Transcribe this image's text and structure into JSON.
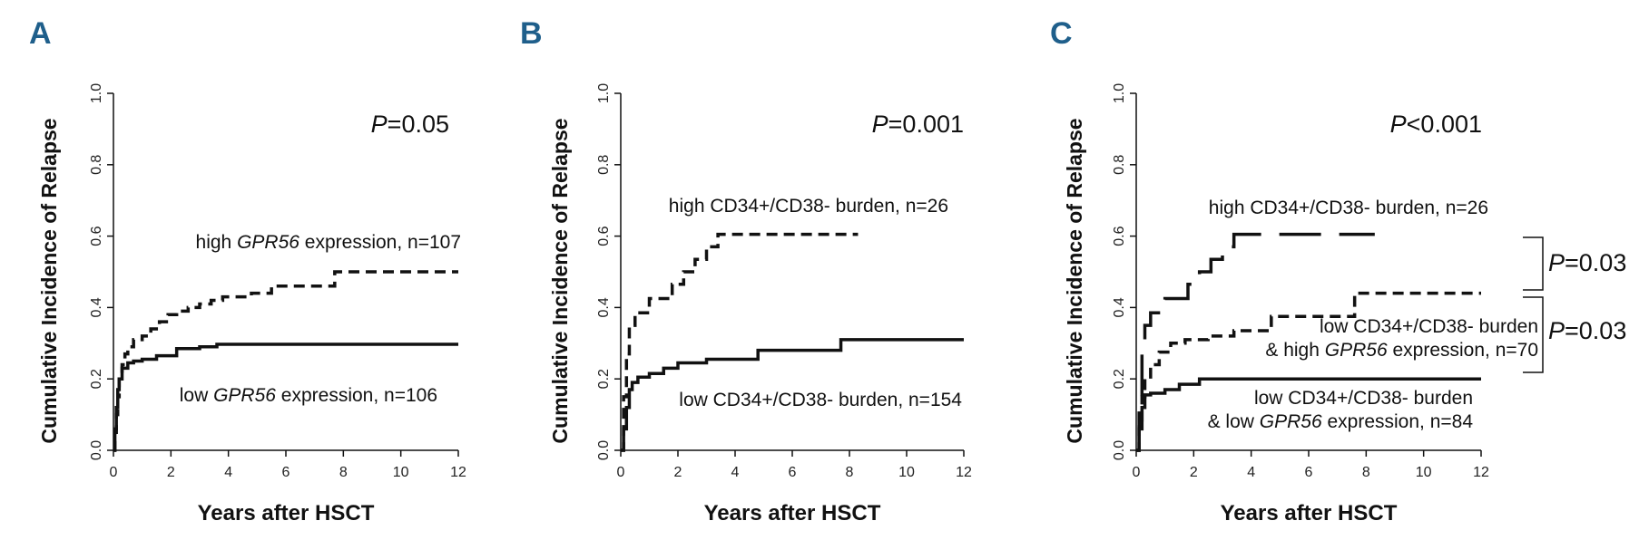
{
  "chart_data": [
    {
      "type": "line",
      "panel": "A",
      "xlabel": "Years after HSCT",
      "ylabel": "Cumulative Incidence of Relapse",
      "xlim": [
        0,
        12
      ],
      "ylim": [
        0,
        1
      ],
      "xticks": [
        "0",
        "2",
        "4",
        "6",
        "8",
        "10",
        "12"
      ],
      "yticks": [
        "0.0",
        "0.2",
        "0.4",
        "0.6",
        "0.8",
        "1.0"
      ],
      "p_value": {
        "prefix": "P",
        "text": "=0.05"
      },
      "series": [
        {
          "name": "high GPR56 expression",
          "label_parts": [
            "high ",
            "GPR56",
            " expression, n=107"
          ],
          "style": "dashed",
          "x": [
            0,
            0.05,
            0.1,
            0.15,
            0.2,
            0.3,
            0.4,
            0.5,
            0.7,
            1.0,
            1.3,
            1.6,
            1.9,
            2.2,
            2.6,
            3.0,
            3.4,
            3.8,
            4.3,
            4.8,
            5.5,
            6.5,
            7.7,
            12
          ],
          "y": [
            0,
            0.05,
            0.1,
            0.15,
            0.2,
            0.24,
            0.27,
            0.29,
            0.31,
            0.32,
            0.34,
            0.36,
            0.38,
            0.39,
            0.4,
            0.41,
            0.42,
            0.43,
            0.43,
            0.44,
            0.46,
            0.46,
            0.5,
            0.5
          ]
        },
        {
          "name": "low GPR56 expression",
          "label_parts": [
            "low ",
            "GPR56",
            " expression, n=106"
          ],
          "style": "solid",
          "x": [
            0,
            0.05,
            0.1,
            0.15,
            0.2,
            0.3,
            0.5,
            0.7,
            1.0,
            1.5,
            2.2,
            3.0,
            3.6,
            12
          ],
          "y": [
            0,
            0.06,
            0.12,
            0.17,
            0.2,
            0.23,
            0.245,
            0.25,
            0.255,
            0.265,
            0.285,
            0.29,
            0.297,
            0.297
          ]
        }
      ]
    },
    {
      "type": "line",
      "panel": "B",
      "xlabel": "Years after HSCT",
      "ylabel": "Cumulative Incidence of Relapse",
      "xlim": [
        0,
        12
      ],
      "ylim": [
        0,
        1
      ],
      "xticks": [
        "0",
        "2",
        "4",
        "6",
        "8",
        "10",
        "12"
      ],
      "yticks": [
        "0.0",
        "0.2",
        "0.4",
        "0.6",
        "0.8",
        "1.0"
      ],
      "p_value": {
        "prefix": "P",
        "text": "=0.001"
      },
      "series": [
        {
          "name": "high CD34+/CD38- burden",
          "label_parts": [
            "high CD34+/CD38- burden, n=26"
          ],
          "style": "dashed",
          "x": [
            0,
            0.1,
            0.2,
            0.3,
            0.5,
            1.0,
            1.8,
            2.2,
            2.6,
            3.0,
            3.4,
            8.3
          ],
          "y": [
            0,
            0.15,
            0.27,
            0.35,
            0.385,
            0.425,
            0.465,
            0.5,
            0.535,
            0.57,
            0.605,
            0.605
          ]
        },
        {
          "name": "low CD34+/CD38- burden",
          "label_parts": [
            "low CD34+/CD38- burden, n=154"
          ],
          "style": "solid",
          "x": [
            0,
            0.1,
            0.2,
            0.3,
            0.4,
            0.6,
            1.0,
            1.5,
            2.0,
            3.0,
            4.8,
            7.7,
            12
          ],
          "y": [
            0,
            0.06,
            0.12,
            0.17,
            0.19,
            0.205,
            0.215,
            0.23,
            0.245,
            0.255,
            0.28,
            0.31,
            0.31
          ]
        }
      ]
    },
    {
      "type": "line",
      "panel": "C",
      "xlabel": "Years after HSCT",
      "ylabel": "Cumulative Incidence of Relapse",
      "xlim": [
        0,
        12
      ],
      "ylim": [
        0,
        1
      ],
      "xticks": [
        "0",
        "2",
        "4",
        "6",
        "8",
        "10",
        "12"
      ],
      "yticks": [
        "0.0",
        "0.2",
        "0.4",
        "0.6",
        "0.8",
        "1.0"
      ],
      "p_value": {
        "prefix": "P",
        "text": "<0.001"
      },
      "pairwise": [
        {
          "prefix": "P",
          "text": "=0.03",
          "between": [
            "high CD34+/CD38- burden",
            "low CD34+/CD38- burden & high GPR56 expression"
          ]
        },
        {
          "prefix": "P",
          "text": "=0.03",
          "between": [
            "low CD34+/CD38- burden & high GPR56 expression",
            "low CD34+/CD38- burden & low GPR56 expression"
          ]
        }
      ],
      "series": [
        {
          "name": "high CD34+/CD38- burden",
          "label_parts": [
            "high CD34+/CD38- burden, n=26"
          ],
          "style": "longdash",
          "x": [
            0,
            0.1,
            0.2,
            0.3,
            0.5,
            1.0,
            1.8,
            2.2,
            2.6,
            3.0,
            3.4,
            8.3
          ],
          "y": [
            0,
            0.15,
            0.27,
            0.35,
            0.385,
            0.425,
            0.465,
            0.5,
            0.535,
            0.57,
            0.605,
            0.605
          ]
        },
        {
          "name": "low CD34+/CD38- burden & high GPR56 expression",
          "label_parts": [
            "low CD34+/CD38- burden",
            "& high ",
            "GPR56",
            " expression, n=70"
          ],
          "style": "dashed",
          "x": [
            0,
            0.1,
            0.2,
            0.3,
            0.5,
            0.8,
            1.2,
            1.7,
            2.5,
            3.4,
            4.7,
            7.6,
            12
          ],
          "y": [
            0,
            0.08,
            0.15,
            0.2,
            0.24,
            0.275,
            0.3,
            0.31,
            0.32,
            0.335,
            0.375,
            0.44,
            0.44
          ]
        },
        {
          "name": "low CD34+/CD38- burden & low GPR56 expression",
          "label_parts": [
            "low CD34+/CD38- burden",
            "& low ",
            "GPR56",
            " expression, n=84"
          ],
          "style": "solid",
          "x": [
            0,
            0.1,
            0.2,
            0.3,
            0.5,
            1.0,
            1.5,
            2.2,
            12
          ],
          "y": [
            0,
            0.06,
            0.12,
            0.155,
            0.16,
            0.17,
            0.185,
            0.2,
            0.2
          ]
        }
      ]
    }
  ]
}
